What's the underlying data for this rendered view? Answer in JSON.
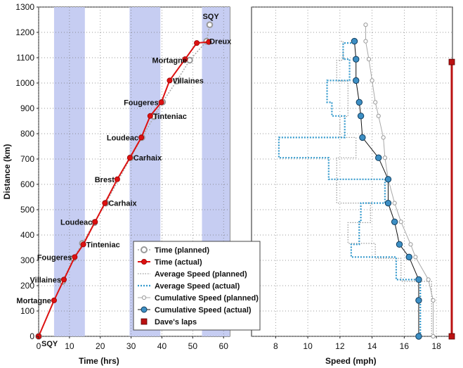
{
  "chart_data": [
    {
      "type": "line",
      "xlabel": "Time (hrs)",
      "ylabel": "Distance (km)",
      "xlim": [
        0,
        62
      ],
      "ylim": [
        0,
        1300
      ],
      "x_ticks": [
        0,
        10,
        20,
        30,
        40,
        50,
        60
      ],
      "y_ticks": [
        0,
        100,
        200,
        300,
        400,
        500,
        600,
        700,
        800,
        900,
        1000,
        1100,
        1200,
        1300
      ],
      "grid": true,
      "shaded_x_ranges": [
        [
          5,
          15
        ],
        [
          29.5,
          39.5
        ],
        [
          53,
          62
        ]
      ],
      "series": [
        {
          "name": "Time (planned)",
          "color": "#a8a8a8",
          "points": [
            [
              0,
              0
            ],
            [
              7.8,
              217
            ],
            [
              11.2,
              308
            ],
            [
              14.2,
              367
            ],
            [
              18.1,
              449
            ],
            [
              21.8,
              526
            ],
            [
              29.8,
              705
            ],
            [
              33.5,
              785
            ],
            [
              37.5,
              868
            ],
            [
              40.2,
              925
            ],
            [
              44.8,
              1008
            ],
            [
              49,
              1090
            ],
            [
              54.5,
              1165
            ],
            [
              55.5,
              1230
            ]
          ]
        },
        {
          "name": "Time (actual)",
          "color": "#dd1111",
          "points": [
            [
              0,
              0
            ],
            [
              5,
              142
            ],
            [
              8.2,
              224
            ],
            [
              11.7,
              313
            ],
            [
              14.5,
              363
            ],
            [
              18.3,
              452
            ],
            [
              21.5,
              526
            ],
            [
              25.5,
              620
            ],
            [
              29.6,
              705
            ],
            [
              33.3,
              785
            ],
            [
              36.2,
              870
            ],
            [
              39.8,
              924
            ],
            [
              42.5,
              1010
            ],
            [
              47.5,
              1094
            ],
            [
              51.3,
              1158
            ],
            [
              55.2,
              1162
            ]
          ]
        }
      ],
      "control_labels": [
        {
          "name": "SQY",
          "x": 0,
          "y": 0
        },
        {
          "name": "Mortagne",
          "x": 5,
          "y": 142
        },
        {
          "name": "Villaines",
          "x": 8.2,
          "y": 224
        },
        {
          "name": "Fougeres",
          "x": 11.7,
          "y": 313
        },
        {
          "name": "Tinteniac",
          "x": 14.5,
          "y": 363
        },
        {
          "name": "Loudeac",
          "x": 18.3,
          "y": 452
        },
        {
          "name": "Carhaix",
          "x": 21.5,
          "y": 526
        },
        {
          "name": "Brest",
          "x": 25.5,
          "y": 620
        },
        {
          "name": "Carhaix",
          "x": 29.6,
          "y": 705
        },
        {
          "name": "Loudeac",
          "x": 33.3,
          "y": 785
        },
        {
          "name": "Tinteniac",
          "x": 36.2,
          "y": 870
        },
        {
          "name": "Fougeres",
          "x": 39.8,
          "y": 924
        },
        {
          "name": "Villaines",
          "x": 42.5,
          "y": 1010
        },
        {
          "name": "Mortagne",
          "x": 49,
          "y": 1090
        },
        {
          "name": "Dreux",
          "x": 54.5,
          "y": 1165
        },
        {
          "name": "SQY",
          "x": 55.5,
          "y": 1230
        }
      ]
    },
    {
      "type": "line",
      "xlabel": "Speed (mph)",
      "ylabel": "",
      "xlim": [
        6.5,
        19
      ],
      "ylim": [
        0,
        1300
      ],
      "x_ticks": [
        8,
        10,
        12,
        14,
        16,
        18
      ],
      "grid": true,
      "series": [
        {
          "name": "Average Speed (planned)",
          "style": "step",
          "color": "#999999",
          "points": [
            [
              17.7,
              0
            ],
            [
              17.7,
              217
            ],
            [
              15.8,
              217
            ],
            [
              15.8,
              308
            ],
            [
              14.2,
              308
            ],
            [
              14.2,
              367
            ],
            [
              12.5,
              367
            ],
            [
              12.5,
              449
            ],
            [
              13.9,
              449
            ],
            [
              13.9,
              526
            ],
            [
              11.8,
              526
            ],
            [
              11.8,
              705
            ],
            [
              13.0,
              705
            ],
            [
              13.0,
              785
            ],
            [
              12.0,
              785
            ],
            [
              12.0,
              868
            ],
            [
              12.5,
              868
            ],
            [
              12.5,
              1008
            ],
            [
              11.8,
              1008
            ],
            [
              11.8,
              1090
            ],
            [
              12.2,
              1090
            ],
            [
              12.2,
              1165
            ],
            [
              12.0,
              1165
            ]
          ]
        },
        {
          "name": "Average Speed (actual)",
          "style": "step",
          "color": "#3399cc",
          "points": [
            [
              17.0,
              0
            ],
            [
              17.0,
              224
            ],
            [
              15.5,
              224
            ],
            [
              15.5,
              313
            ],
            [
              12.7,
              313
            ],
            [
              12.7,
              363
            ],
            [
              13.2,
              363
            ],
            [
              13.2,
              452
            ],
            [
              13.3,
              452
            ],
            [
              13.3,
              526
            ],
            [
              14.8,
              526
            ],
            [
              14.8,
              620
            ],
            [
              11.3,
              620
            ],
            [
              11.3,
              705
            ],
            [
              8.2,
              705
            ],
            [
              8.2,
              785
            ],
            [
              12.3,
              785
            ],
            [
              12.3,
              870
            ],
            [
              11.5,
              870
            ],
            [
              11.5,
              924
            ],
            [
              11.2,
              924
            ],
            [
              11.2,
              1010
            ],
            [
              12.6,
              1010
            ],
            [
              12.6,
              1094
            ],
            [
              12.2,
              1094
            ],
            [
              12.2,
              1158
            ],
            [
              12.8,
              1158
            ]
          ]
        },
        {
          "name": "Cumulative Speed (planned)",
          "color": "#a8a8a8",
          "points": [
            [
              17.8,
              0
            ],
            [
              17.8,
              142
            ],
            [
              17.5,
              224
            ],
            [
              16.7,
              313
            ],
            [
              16.4,
              363
            ],
            [
              15.8,
              452
            ],
            [
              15.4,
              526
            ],
            [
              15.0,
              620
            ],
            [
              14.8,
              705
            ],
            [
              14.7,
              785
            ],
            [
              14.4,
              870
            ],
            [
              14.2,
              924
            ],
            [
              14.0,
              1010
            ],
            [
              13.8,
              1094
            ],
            [
              13.6,
              1165
            ],
            [
              13.6,
              1230
            ]
          ]
        },
        {
          "name": "Cumulative Speed (actual)",
          "color": "#1f6a9a",
          "points": [
            [
              16.9,
              0
            ],
            [
              16.9,
              142
            ],
            [
              16.9,
              224
            ],
            [
              16.3,
              313
            ],
            [
              15.7,
              363
            ],
            [
              15.4,
              452
            ],
            [
              15.0,
              526
            ],
            [
              15.0,
              620
            ],
            [
              14.4,
              705
            ],
            [
              13.4,
              785
            ],
            [
              13.3,
              870
            ],
            [
              13.2,
              924
            ],
            [
              13.0,
              1010
            ],
            [
              13.0,
              1094
            ],
            [
              12.9,
              1165
            ]
          ]
        },
        {
          "name": "Dave's laps",
          "color": "#bb1111",
          "points": [
            [
              19,
              0
            ],
            [
              19,
              1083
            ]
          ]
        }
      ]
    }
  ],
  "legend": {
    "position": "bottom-center",
    "items": [
      {
        "label": "Time (planned)",
        "color": "#a8a8a8"
      },
      {
        "label": "Time (actual)",
        "color": "#dd1111"
      },
      {
        "label": "Average Speed (planned)",
        "color": "#999999"
      },
      {
        "label": "Average Speed (actual)",
        "color": "#3399cc"
      },
      {
        "label": "Cumulative Speed (planned)",
        "color": "#a8a8a8"
      },
      {
        "label": "Cumulative Speed (actual)",
        "color": "#1f6a9a"
      },
      {
        "label": "Dave's laps",
        "color": "#bb1111"
      }
    ]
  }
}
